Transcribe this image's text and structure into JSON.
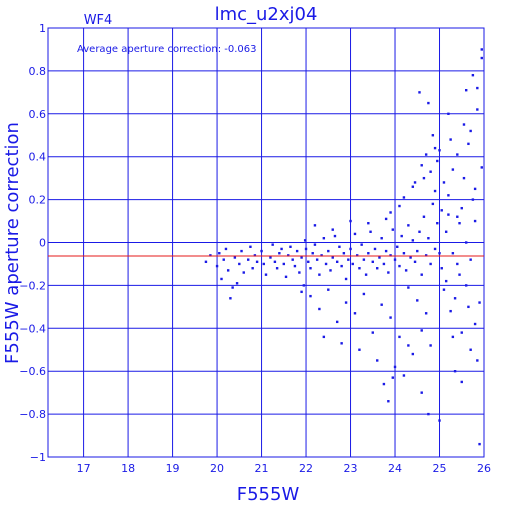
{
  "chart_data": {
    "type": "scatter",
    "title": "lmc_u2xj04",
    "panel_label": "WF4",
    "annotation": "Average aperture correction: -0.063",
    "xlabel": "F555W",
    "ylabel": "F555W aperture correction",
    "xlim": [
      16.2,
      26.0
    ],
    "ylim": [
      -1.0,
      1.0
    ],
    "x_ticks": [
      17,
      18,
      19,
      20,
      21,
      22,
      23,
      24,
      25,
      26
    ],
    "x_tick_labels": [
      "17",
      "18",
      "19",
      "20",
      "21",
      "22",
      "23",
      "24",
      "25",
      "26"
    ],
    "y_ticks": [
      -1,
      -0.8,
      -0.6,
      -0.4,
      -0.2,
      0,
      0.2,
      0.4,
      0.6,
      0.8,
      1
    ],
    "y_tick_labels": [
      "−1",
      "−0.8",
      "−0.6",
      "−0.4",
      "−0.2",
      "0",
      "0.2",
      "0.4",
      "0.6",
      "0.8",
      "1"
    ],
    "grid": true,
    "reference_line_y": -0.063,
    "colors": {
      "axis": "#1a1ae6",
      "points": "#1a1ae6",
      "reference_line": "#e61a1a",
      "background": "#ffffff"
    },
    "series": [
      {
        "marker": "square",
        "points": [
          [
            19.75,
            -0.09
          ],
          [
            19.85,
            -0.06
          ],
          [
            20.0,
            -0.11
          ],
          [
            20.05,
            -0.05
          ],
          [
            20.1,
            -0.17
          ],
          [
            20.15,
            -0.08
          ],
          [
            20.2,
            -0.03
          ],
          [
            20.25,
            -0.13
          ],
          [
            20.3,
            -0.26
          ],
          [
            20.35,
            -0.21
          ],
          [
            20.4,
            -0.07
          ],
          [
            20.45,
            -0.19
          ],
          [
            20.5,
            -0.1
          ],
          [
            20.55,
            -0.04
          ],
          [
            20.6,
            -0.14
          ],
          [
            20.7,
            -0.08
          ],
          [
            20.75,
            -0.02
          ],
          [
            20.8,
            -0.12
          ],
          [
            20.85,
            -0.06
          ],
          [
            20.9,
            -0.09
          ],
          [
            21.0,
            -0.04
          ],
          [
            21.05,
            -0.1
          ],
          [
            21.1,
            -0.15
          ],
          [
            21.2,
            -0.07
          ],
          [
            21.25,
            -0.01
          ],
          [
            21.3,
            -0.09
          ],
          [
            21.35,
            -0.12
          ],
          [
            21.4,
            -0.05
          ],
          [
            21.45,
            -0.03
          ],
          [
            21.5,
            -0.1
          ],
          [
            21.55,
            -0.16
          ],
          [
            21.6,
            -0.06
          ],
          [
            21.65,
            -0.02
          ],
          [
            21.7,
            -0.08
          ],
          [
            21.75,
            -0.11
          ],
          [
            21.8,
            -0.04
          ],
          [
            21.85,
            -0.14
          ],
          [
            21.9,
            -0.07
          ],
          [
            21.95,
            -0.2
          ],
          [
            21.98,
            0.01
          ],
          [
            22.0,
            -0.03
          ],
          [
            22.05,
            -0.09
          ],
          [
            22.1,
            -0.12
          ],
          [
            22.15,
            -0.05
          ],
          [
            22.2,
            -0.01
          ],
          [
            22.25,
            -0.08
          ],
          [
            22.3,
            -0.15
          ],
          [
            22.35,
            -0.06
          ],
          [
            22.4,
            0.02
          ],
          [
            22.45,
            -0.1
          ],
          [
            22.5,
            -0.04
          ],
          [
            22.55,
            -0.13
          ],
          [
            22.6,
            -0.07
          ],
          [
            22.65,
            0.03
          ],
          [
            22.7,
            -0.09
          ],
          [
            22.75,
            -0.02
          ],
          [
            22.8,
            -0.11
          ],
          [
            22.85,
            -0.05
          ],
          [
            22.9,
            -0.17
          ],
          [
            22.95,
            -0.08
          ],
          [
            23.0,
            -0.03
          ],
          [
            23.05,
            -0.1
          ],
          [
            23.1,
            0.04
          ],
          [
            23.15,
            -0.06
          ],
          [
            23.2,
            -0.12
          ],
          [
            23.25,
            -0.01
          ],
          [
            23.3,
            -0.08
          ],
          [
            23.35,
            -0.15
          ],
          [
            23.4,
            -0.05
          ],
          [
            23.45,
            0.05
          ],
          [
            23.5,
            -0.09
          ],
          [
            23.55,
            -0.03
          ],
          [
            23.6,
            -0.12
          ],
          [
            23.65,
            -0.07
          ],
          [
            23.7,
            0.02
          ],
          [
            23.75,
            -0.1
          ],
          [
            23.8,
            -0.04
          ],
          [
            23.85,
            -0.14
          ],
          [
            23.9,
            -0.06
          ],
          [
            23.95,
            0.06
          ],
          [
            24.0,
            -0.08
          ],
          [
            24.05,
            -0.02
          ],
          [
            24.1,
            -0.11
          ],
          [
            24.15,
            0.03
          ],
          [
            24.2,
            -0.05
          ],
          [
            24.25,
            -0.13
          ],
          [
            24.3,
            0.08
          ],
          [
            24.35,
            -0.07
          ],
          [
            24.4,
            0.01
          ],
          [
            24.45,
            -0.09
          ],
          [
            24.5,
            -0.04
          ],
          [
            24.55,
            0.05
          ],
          [
            24.6,
            -0.15
          ],
          [
            24.65,
            0.12
          ],
          [
            24.7,
            -0.06
          ],
          [
            24.75,
            0.02
          ],
          [
            24.8,
            -0.1
          ],
          [
            24.85,
            0.18
          ],
          [
            24.9,
            -0.03
          ],
          [
            24.95,
            0.09
          ],
          [
            22.1,
            -0.25
          ],
          [
            22.3,
            -0.31
          ],
          [
            22.5,
            -0.22
          ],
          [
            22.7,
            -0.37
          ],
          [
            22.9,
            -0.28
          ],
          [
            23.1,
            -0.33
          ],
          [
            23.3,
            -0.24
          ],
          [
            23.5,
            -0.42
          ],
          [
            23.7,
            -0.29
          ],
          [
            23.9,
            -0.35
          ],
          [
            22.2,
            0.08
          ],
          [
            22.6,
            0.06
          ],
          [
            23.0,
            0.1
          ],
          [
            23.4,
            0.09
          ],
          [
            23.8,
            0.11
          ],
          [
            21.9,
            -0.23
          ],
          [
            22.4,
            -0.44
          ],
          [
            23.2,
            -0.5
          ],
          [
            23.6,
            -0.55
          ],
          [
            22.8,
            -0.47
          ],
          [
            23.9,
            0.14
          ],
          [
            24.1,
            0.17
          ],
          [
            24.3,
            -0.21
          ],
          [
            24.5,
            -0.27
          ],
          [
            24.7,
            -0.33
          ],
          [
            24.2,
            0.21
          ],
          [
            24.4,
            0.26
          ],
          [
            24.6,
            -0.41
          ],
          [
            24.8,
            -0.48
          ],
          [
            24.9,
            0.24
          ],
          [
            23.75,
            -0.66
          ],
          [
            23.85,
            -0.74
          ],
          [
            24.0,
            -0.58
          ],
          [
            24.2,
            -0.62
          ],
          [
            24.4,
            -0.52
          ],
          [
            24.6,
            -0.7
          ],
          [
            24.75,
            -0.8
          ],
          [
            24.3,
            -0.48
          ],
          [
            24.1,
            -0.44
          ],
          [
            23.95,
            -0.63
          ],
          [
            24.6,
            0.36
          ],
          [
            24.7,
            0.41
          ],
          [
            24.8,
            0.33
          ],
          [
            24.9,
            0.44
          ],
          [
            24.65,
            0.3
          ],
          [
            24.55,
            0.7
          ],
          [
            24.75,
            0.65
          ],
          [
            24.95,
            0.38
          ],
          [
            24.45,
            0.28
          ],
          [
            24.85,
            0.5
          ],
          [
            25.0,
            -0.05
          ],
          [
            25.05,
            0.15
          ],
          [
            25.1,
            0.28
          ],
          [
            25.15,
            -0.18
          ],
          [
            25.2,
            0.22
          ],
          [
            25.25,
            -0.32
          ],
          [
            25.3,
            0.34
          ],
          [
            25.35,
            -0.26
          ],
          [
            25.4,
            0.12
          ],
          [
            25.45,
            0.09
          ],
          [
            25.5,
            -0.42
          ],
          [
            25.55,
            0.55
          ],
          [
            25.6,
            -0.2
          ],
          [
            25.65,
            0.46
          ],
          [
            25.7,
            -0.5
          ],
          [
            25.75,
            0.78
          ],
          [
            25.8,
            -0.38
          ],
          [
            25.85,
            0.62
          ],
          [
            25.9,
            -0.28
          ],
          [
            25.95,
            0.9
          ],
          [
            25.05,
            -0.12
          ],
          [
            25.15,
            0.05
          ],
          [
            25.25,
            0.48
          ],
          [
            25.35,
            -0.6
          ],
          [
            25.45,
            -0.15
          ],
          [
            25.55,
            0.3
          ],
          [
            25.65,
            -0.3
          ],
          [
            25.75,
            0.2
          ],
          [
            25.85,
            -0.55
          ],
          [
            25.95,
            0.35
          ],
          [
            25.0,
            0.43
          ],
          [
            25.2,
            0.6
          ],
          [
            25.4,
            0.41
          ],
          [
            25.6,
            0.71
          ],
          [
            25.8,
            0.25
          ],
          [
            25.1,
            -0.22
          ],
          [
            25.3,
            -0.44
          ],
          [
            25.5,
            -0.65
          ],
          [
            25.7,
            -0.08
          ],
          [
            25.9,
            -0.94
          ],
          [
            25.0,
            -0.83
          ],
          [
            25.4,
            -0.1
          ],
          [
            25.6,
            0.0
          ],
          [
            25.2,
            0.13
          ],
          [
            25.8,
            0.1
          ],
          [
            25.95,
            0.86
          ],
          [
            25.85,
            0.72
          ],
          [
            25.7,
            0.52
          ],
          [
            25.5,
            0.16
          ],
          [
            25.3,
            -0.05
          ]
        ]
      }
    ]
  }
}
